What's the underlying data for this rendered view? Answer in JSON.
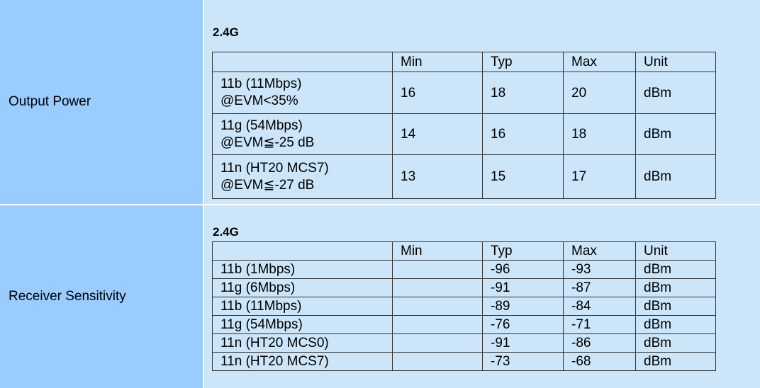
{
  "sections": [
    {
      "label": "Output Power",
      "band": "2.4G",
      "headers": [
        "",
        "Min",
        "Typ",
        "Max",
        "Unit"
      ],
      "rows": [
        {
          "mode_line1": "11b (11Mbps)",
          "mode_line2": "@EVM<35%",
          "min": "16",
          "typ": "18",
          "max": "20",
          "unit": "dBm"
        },
        {
          "mode_line1": "11g (54Mbps)",
          "mode_line2": "@EVM≦-25 dB",
          "min": "14",
          "typ": "16",
          "max": "18",
          "unit": "dBm"
        },
        {
          "mode_line1": "11n (HT20 MCS7)",
          "mode_line2": "@EVM≦-27 dB",
          "min": "13",
          "typ": "15",
          "max": "17",
          "unit": "dBm"
        }
      ]
    },
    {
      "label": "Receiver Sensitivity",
      "band": "2.4G",
      "headers": [
        "",
        "Min",
        "Typ",
        "Max",
        "Unit"
      ],
      "rows": [
        {
          "mode": "11b (1Mbps)",
          "min": "",
          "typ": "-96",
          "max": "-93",
          "unit": "dBm"
        },
        {
          "mode": "11g (6Mbps)",
          "min": "",
          "typ": "-91",
          "max": "-87",
          "unit": "dBm"
        },
        {
          "mode": "11b (11Mbps)",
          "min": "",
          "typ": "-89",
          "max": "-84",
          "unit": "dBm"
        },
        {
          "mode": "11g (54Mbps)",
          "min": "",
          "typ": "-76",
          "max": "-71",
          "unit": "dBm"
        },
        {
          "mode": "11n (HT20 MCS0)",
          "min": "",
          "typ": "-91",
          "max": "-86",
          "unit": "dBm"
        },
        {
          "mode": "11n (HT20 MCS7)",
          "min": "",
          "typ": "-73",
          "max": "-68",
          "unit": "dBm"
        }
      ]
    }
  ]
}
